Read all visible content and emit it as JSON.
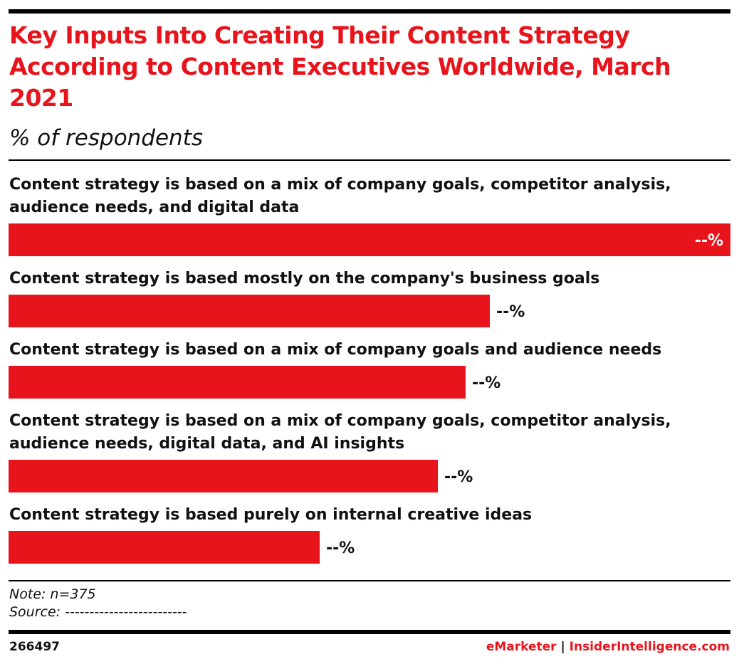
{
  "colors": {
    "accent": "#e8141c",
    "text": "#111111",
    "rule": "#000000"
  },
  "chart_data": {
    "type": "bar",
    "orientation": "horizontal",
    "title": "Key Inputs Into Creating Their Content Strategy According to Content Executives Worldwide, March 2021",
    "subtitle": "% of respondents",
    "categories": [
      [
        "Content strategy is based on a mix of company goals, competitor analysis,",
        "audience needs, and digital data"
      ],
      [
        "Content strategy is based mostly on the company's business goals"
      ],
      [
        "Content strategy is based on a mix of company goals and audience needs"
      ],
      [
        "Content strategy is based on a mix of company goals, competitor analysis,",
        "audience needs, digital data, and AI insights"
      ],
      [
        "Content strategy is based purely on internal creative ideas"
      ]
    ],
    "values": [
      100,
      66.7,
      63.3,
      59.5,
      43.1
    ],
    "value_labels": [
      "--%",
      "--%",
      "--%",
      "--%",
      "--%"
    ],
    "xlim": [
      0,
      100
    ],
    "grid": false,
    "legend": "none"
  },
  "footer": {
    "note": "Note: n=375",
    "source": "Source: -------------------------",
    "chart_id": "266497",
    "brand_emarketer": "eMarketer",
    "brand_separator": "|",
    "brand_insider": "InsiderIntelligence.com"
  }
}
